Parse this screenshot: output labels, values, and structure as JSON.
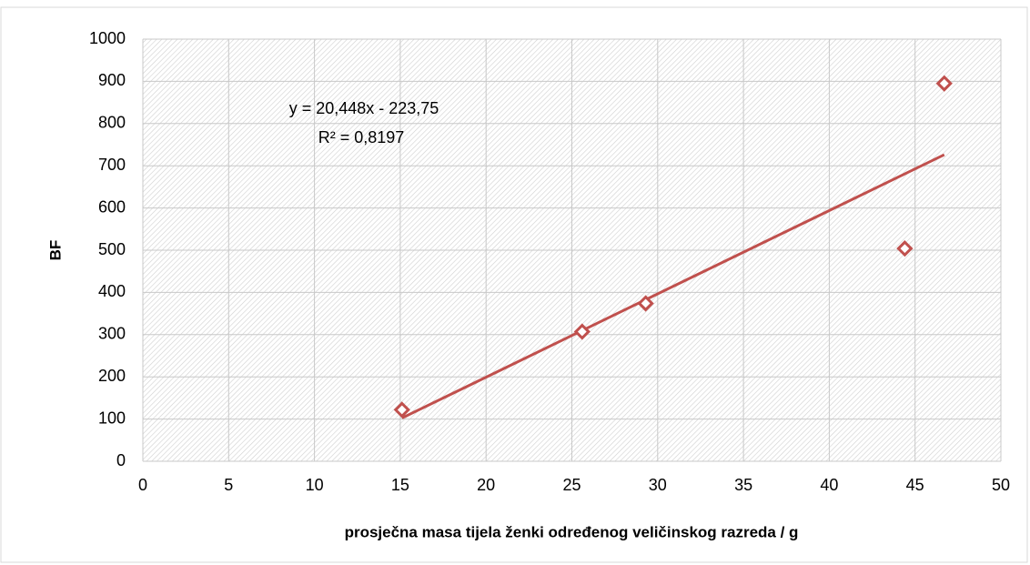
{
  "chart_data": {
    "type": "scatter",
    "xlabel": "prosječna masa tijela ženki  određenog veličinskog razreda / g",
    "ylabel": "BF",
    "annotations": [
      "y = 20,448x - 223,75",
      "R² = 0,8197"
    ],
    "series": [
      {
        "name": "BF",
        "color": "#c0504d",
        "x": [
          15.1,
          25.6,
          29.3,
          44.4,
          46.7
        ],
        "values": [
          122,
          307,
          374,
          504,
          895
        ]
      }
    ],
    "trendline": "linear",
    "xlim": [
      0,
      50
    ],
    "xticks": [
      0,
      5,
      10,
      15,
      20,
      25,
      30,
      35,
      40,
      45,
      50
    ],
    "ylim": [
      0,
      1000
    ],
    "yticks": [
      0,
      100,
      200,
      300,
      400,
      500,
      600,
      700,
      800,
      900,
      1000
    ],
    "grid": true
  }
}
